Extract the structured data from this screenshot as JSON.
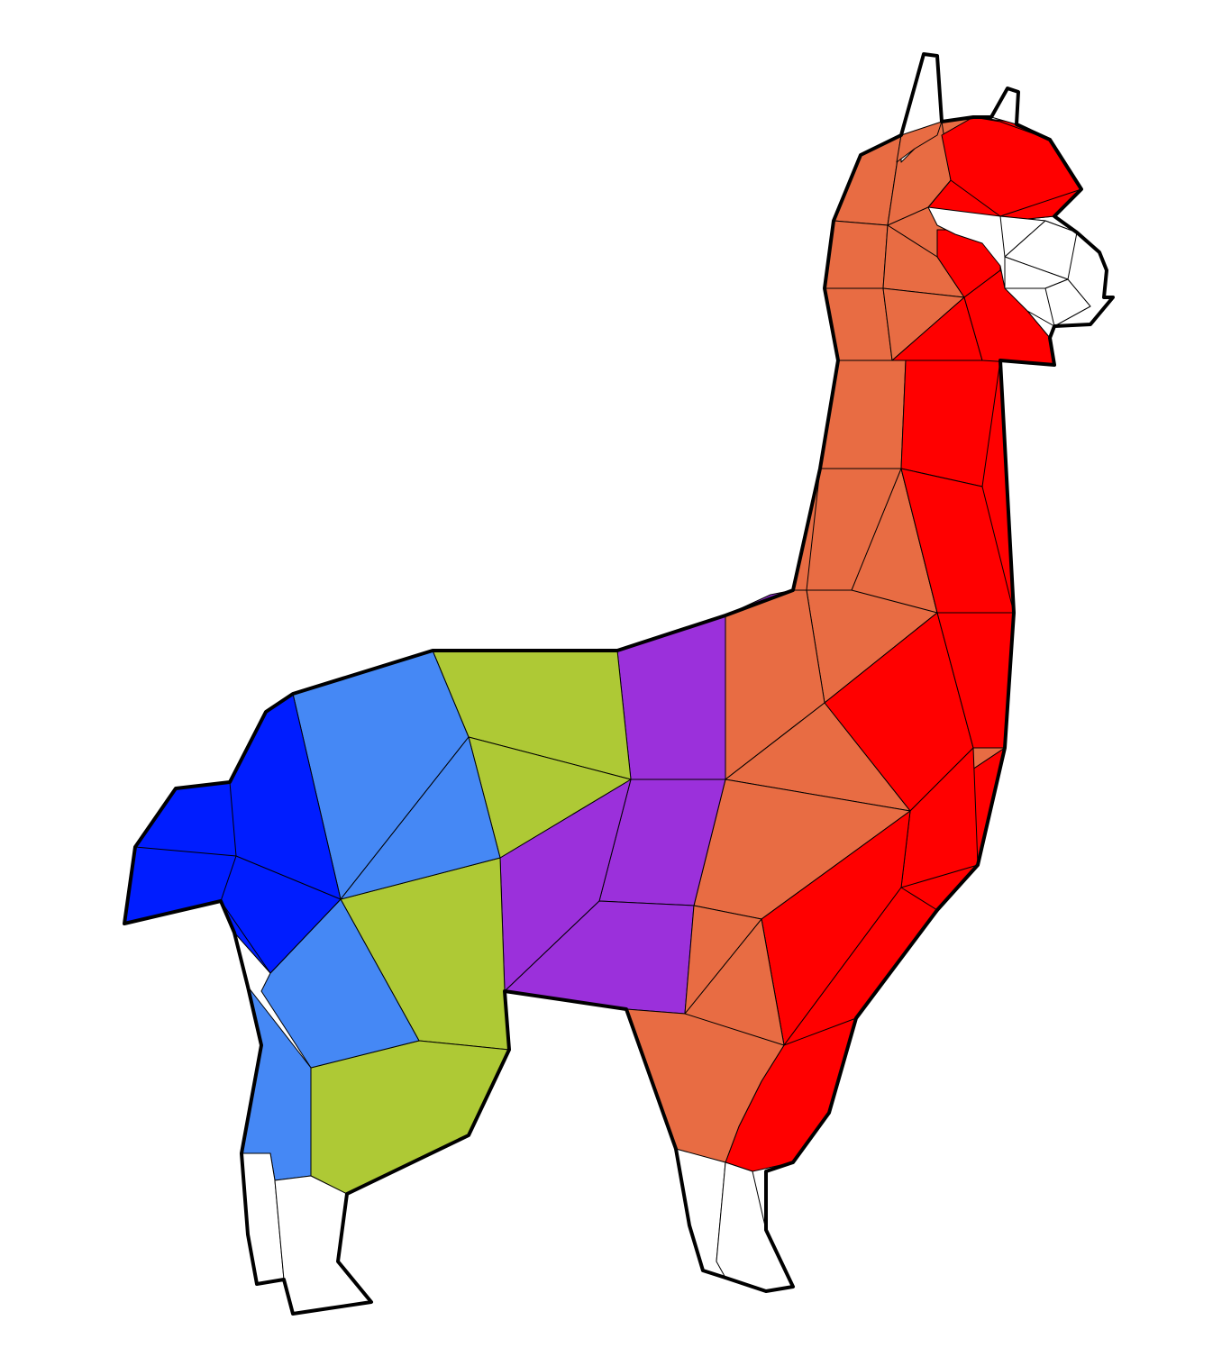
{
  "palette": {
    "background": "#ffffff",
    "outline": "#000000",
    "white": "#ffffff",
    "red": "#ff0000",
    "orange": "#e86c43",
    "purple": "#9b30db",
    "lime": "#aec935",
    "lightblue": "#4588f5",
    "blue": "#001dff"
  },
  "subject": "low-poly llama"
}
